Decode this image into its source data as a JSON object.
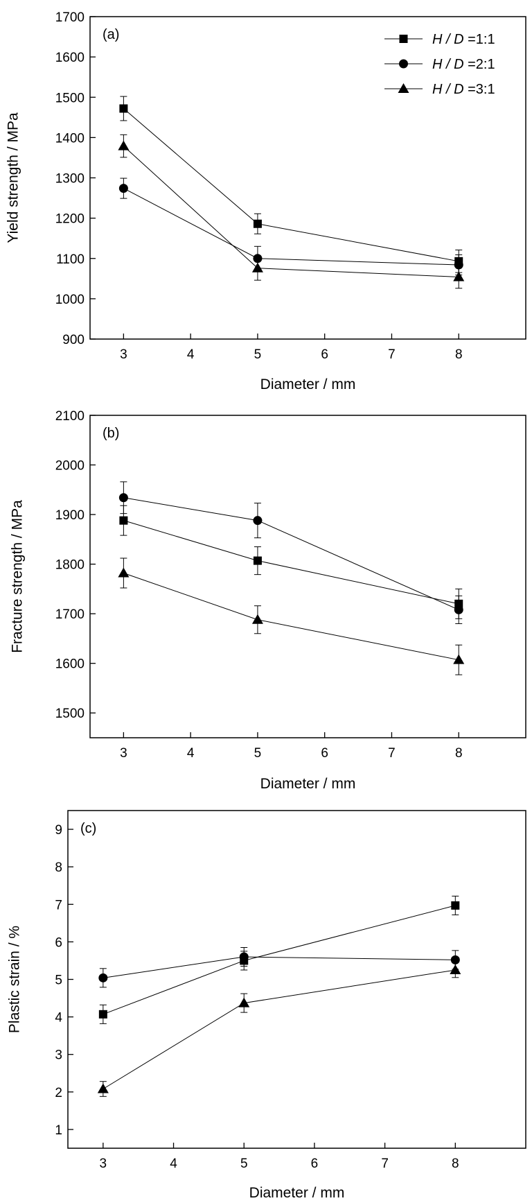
{
  "chart_data": [
    {
      "type": "line",
      "panel_label": "(a)",
      "xlabel": "Diameter / mm",
      "ylabel": "Yield strength / MPa",
      "xlim": [
        2.5,
        9
      ],
      "ylim": [
        900,
        1700
      ],
      "xticks": [
        3,
        4,
        5,
        6,
        7,
        8
      ],
      "yticks": [
        900,
        1000,
        1100,
        1200,
        1300,
        1400,
        1500,
        1600,
        1700
      ],
      "x": [
        3,
        5,
        8
      ],
      "legend_position": "top-right",
      "series": [
        {
          "name": "H / D =1:1",
          "name_italic": "H / D",
          "name_rest": " =1:1",
          "marker": "square",
          "values": [
            1472,
            1186,
            1093
          ],
          "errors": [
            30,
            25,
            28
          ]
        },
        {
          "name": "H / D =2:1",
          "name_italic": "H / D",
          "name_rest": " =2:1",
          "marker": "circle",
          "values": [
            1274,
            1100,
            1084
          ],
          "errors": [
            25,
            30,
            25
          ]
        },
        {
          "name": "H / D =3:1",
          "name_italic": "H / D",
          "name_rest": " =3:1",
          "marker": "triangle",
          "values": [
            1379,
            1076,
            1054
          ],
          "errors": [
            28,
            30,
            28
          ]
        }
      ]
    },
    {
      "type": "line",
      "panel_label": "(b)",
      "xlabel": "Diameter / mm",
      "ylabel": "Fracture strength / MPa",
      "xlim": [
        2.5,
        9
      ],
      "ylim": [
        1450,
        2100
      ],
      "xticks": [
        3,
        4,
        5,
        6,
        7,
        8
      ],
      "yticks": [
        1500,
        1600,
        1700,
        1800,
        1900,
        2000,
        2100
      ],
      "x": [
        3,
        5,
        8
      ],
      "series": [
        {
          "marker": "square",
          "values": [
            1888,
            1807,
            1720
          ],
          "errors": [
            30,
            28,
            30
          ]
        },
        {
          "marker": "circle",
          "values": [
            1934,
            1888,
            1708
          ],
          "errors": [
            32,
            35,
            28
          ]
        },
        {
          "marker": "triangle",
          "values": [
            1782,
            1688,
            1607
          ],
          "errors": [
            30,
            28,
            30
          ]
        }
      ]
    },
    {
      "type": "line",
      "panel_label": "(c)",
      "xlabel": "Diameter / mm",
      "ylabel": "Plastic strain / %",
      "xlim": [
        2.5,
        9
      ],
      "ylim": [
        0.5,
        9.5
      ],
      "xticks": [
        3,
        4,
        5,
        6,
        7,
        8
      ],
      "yticks": [
        1,
        2,
        3,
        4,
        5,
        6,
        7,
        8,
        9
      ],
      "x": [
        3,
        5,
        8
      ],
      "series": [
        {
          "marker": "square",
          "values": [
            4.07,
            5.5,
            6.97
          ],
          "errors": [
            0.25,
            0.25,
            0.25
          ]
        },
        {
          "marker": "circle",
          "values": [
            5.04,
            5.6,
            5.52
          ],
          "errors": [
            0.25,
            0.25,
            0.25
          ]
        },
        {
          "marker": "triangle",
          "values": [
            2.08,
            4.37,
            5.25
          ],
          "errors": [
            0.2,
            0.25,
            0.2
          ]
        }
      ]
    }
  ]
}
